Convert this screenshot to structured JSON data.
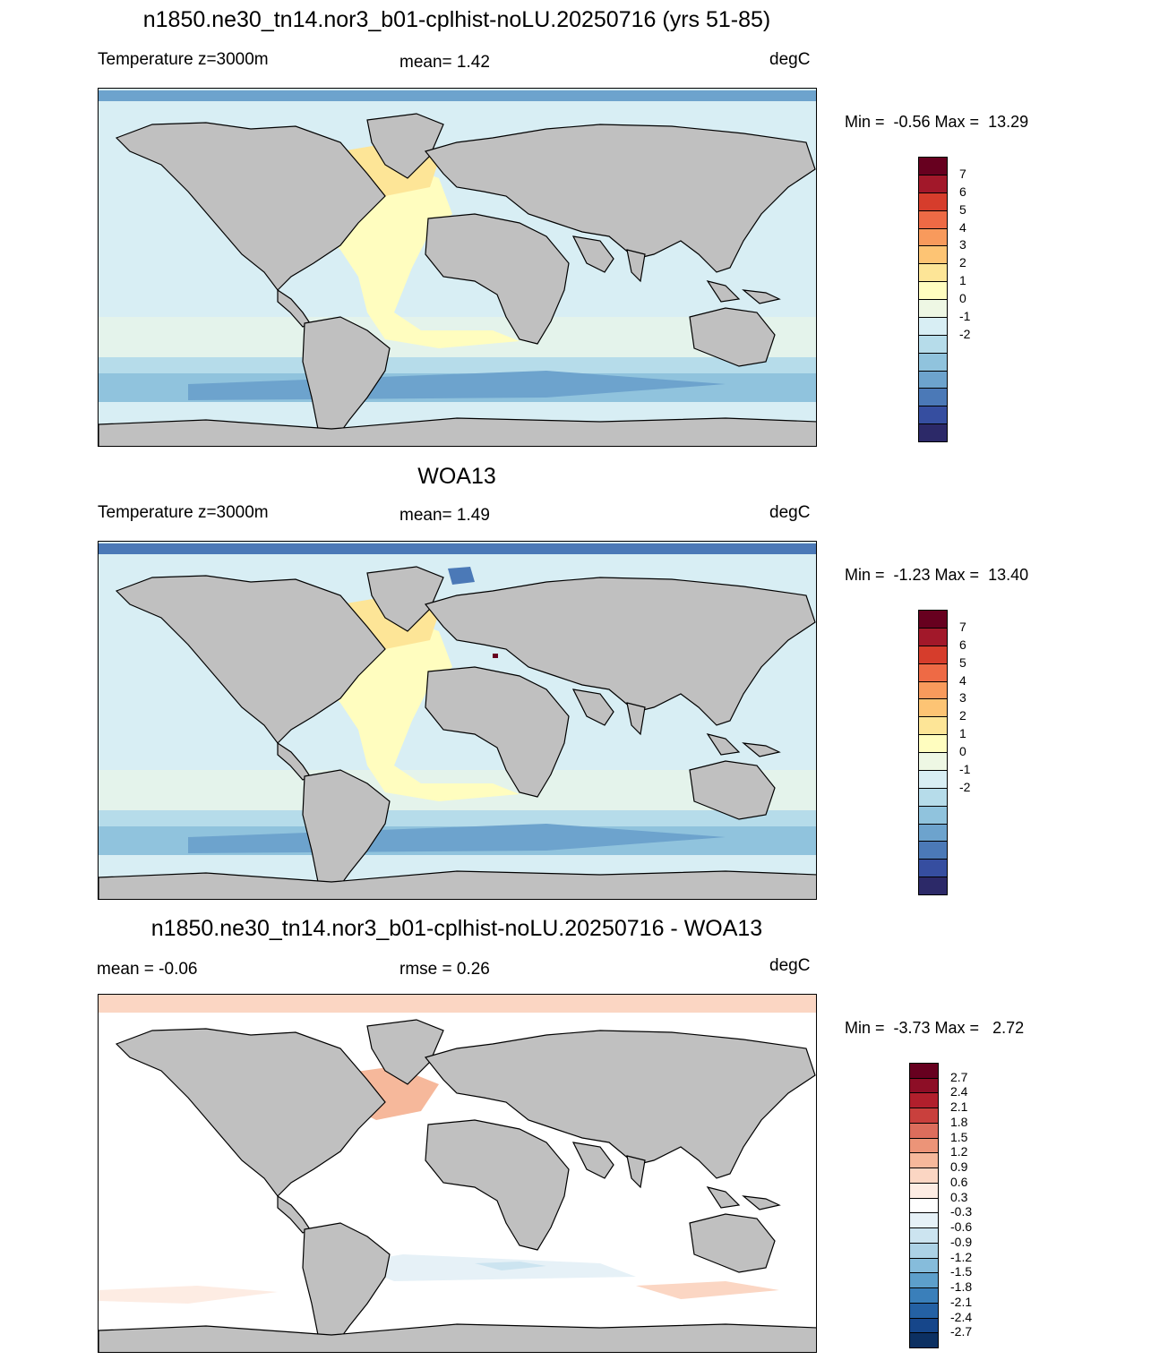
{
  "panels": [
    {
      "title": "n1850.ne30_tn14.nor3_b01-cplhist-noLU.20250716 (yrs 51-85)",
      "left_label": "Temperature z=3000m",
      "center_label": "mean=   1.42",
      "units": "degC",
      "minmax": "Min =  -0.56 Max =  13.29",
      "legend": {
        "labels": [
          "7",
          "6",
          "5",
          "4",
          "3",
          "2",
          "1",
          "0",
          "-1",
          "-2"
        ],
        "colors": [
          "#67001f",
          "#a2182a",
          "#d63d2c",
          "#ee6a45",
          "#f89a5c",
          "#fdc474",
          "#fde597",
          "#fffdbf",
          "#eef7e4",
          "#d8eef4",
          "#b6dcea",
          "#90c3dd",
          "#6da3cd",
          "#4b79b7",
          "#364ea0",
          "#2c2968"
        ]
      }
    },
    {
      "title": "WOA13",
      "left_label": "Temperature z=3000m",
      "center_label": "mean=   1.49",
      "units": "degC",
      "minmax": "Min =  -1.23 Max =  13.40",
      "legend": {
        "labels": [
          "7",
          "6",
          "5",
          "4",
          "3",
          "2",
          "1",
          "0",
          "-1",
          "-2"
        ],
        "colors": [
          "#67001f",
          "#a2182a",
          "#d63d2c",
          "#ee6a45",
          "#f89a5c",
          "#fdc474",
          "#fde597",
          "#fffdbf",
          "#eef7e4",
          "#d8eef4",
          "#b6dcea",
          "#90c3dd",
          "#6da3cd",
          "#4b79b7",
          "#364ea0",
          "#2c2968"
        ]
      }
    },
    {
      "title": "n1850.ne30_tn14.nor3_b01-cplhist-noLU.20250716 - WOA13",
      "left_label": "mean =  -0.06",
      "center_label": "rmse =   0.26",
      "units": "degC",
      "minmax": "Min =  -3.73 Max =   2.72",
      "legend": {
        "labels": [
          "2.7",
          "2.4",
          "2.1",
          "1.8",
          "1.5",
          "1.2",
          "0.9",
          "0.6",
          "0.3",
          "-0.3",
          "-0.6",
          "-0.9",
          "-1.2",
          "-1.5",
          "-1.8",
          "-2.1",
          "-2.4",
          "-2.7"
        ],
        "colors": [
          "#67001f",
          "#8d0e26",
          "#b11f2c",
          "#c9403d",
          "#dc6d5c",
          "#ec9478",
          "#f6b89b",
          "#fbd6c3",
          "#fdece3",
          "#ffffff",
          "#e6f1f7",
          "#cce4f0",
          "#acd2e6",
          "#86bcdb",
          "#5d9fcb",
          "#3a7fba",
          "#2461a4",
          "#16468a",
          "#0c3062"
        ]
      }
    }
  ]
}
